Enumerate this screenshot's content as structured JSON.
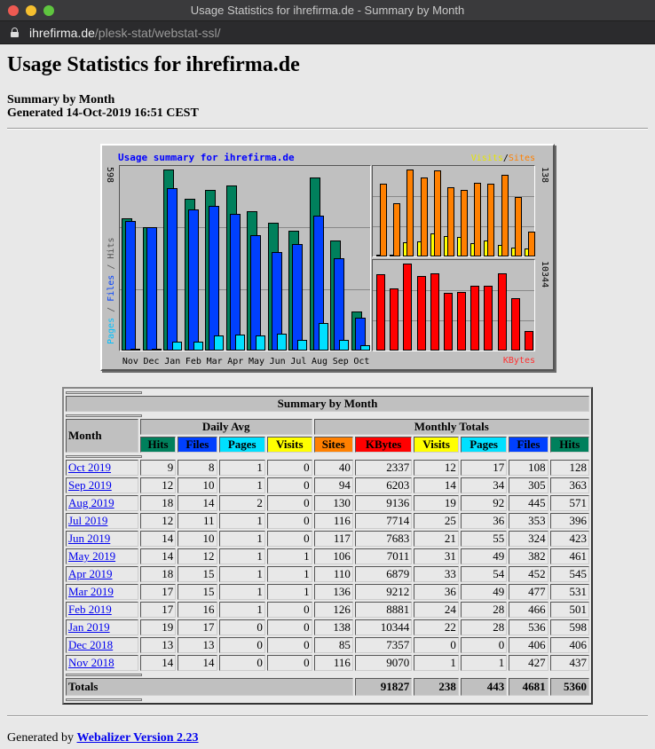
{
  "window": {
    "title": "Usage Statistics for ihrefirma.de - Summary by Month",
    "url_host": "ihrefirma.de",
    "url_path": "/plesk-stat/webstat-ssl/"
  },
  "page": {
    "heading": "Usage Statistics for ihrefirma.de",
    "subtitle": "Summary by Month",
    "generated": "Generated 14-Oct-2019 16:51 CEST"
  },
  "chart": {
    "title": "Usage summary for ihrefirma.de",
    "left_max": "598",
    "right_top_max": "138",
    "right_bottom_max": "10344",
    "legend_left": {
      "pages": "Pages",
      "files": "Files",
      "hits": "Hits",
      "sep": "/"
    },
    "legend_visits": "Visits",
    "legend_sites": "Sites",
    "legend_sep": "/",
    "legend_kbytes": "KBytes",
    "colors": {
      "hits": "#00805c",
      "files": "#0040ff",
      "pages": "#00e0ff",
      "visits": "#ffff00",
      "sites": "#ff8000",
      "kbytes": "#ff0000"
    }
  },
  "chart_data": {
    "type": "bar",
    "title": "Usage summary for ihrefirma.de",
    "categories": [
      "Nov",
      "Dec",
      "Jan",
      "Feb",
      "Mar",
      "Apr",
      "May",
      "Jun",
      "Jul",
      "Aug",
      "Sep",
      "Oct"
    ],
    "panels": [
      {
        "name": "Pages / Files / Hits",
        "ylim": [
          0,
          598
        ],
        "series": [
          {
            "name": "Hits",
            "values": [
              437,
              406,
              598,
              501,
              531,
              545,
              461,
              423,
              396,
              571,
              363,
              128
            ]
          },
          {
            "name": "Files",
            "values": [
              427,
              406,
              536,
              466,
              477,
              452,
              382,
              324,
              353,
              445,
              305,
              108
            ]
          },
          {
            "name": "Pages",
            "values": [
              1,
              0,
              28,
              28,
              49,
              54,
              49,
              55,
              36,
              92,
              34,
              17
            ]
          }
        ]
      },
      {
        "name": "Visits / Sites",
        "ylim": [
          0,
          138
        ],
        "series": [
          {
            "name": "Visits",
            "values": [
              1,
              0,
              22,
              24,
              36,
              33,
              31,
              21,
              25,
              19,
              14,
              12
            ]
          },
          {
            "name": "Sites",
            "values": [
              116,
              85,
              138,
              126,
              136,
              110,
              106,
              117,
              116,
              130,
              94,
              40
            ]
          }
        ]
      },
      {
        "name": "KBytes",
        "ylim": [
          0,
          10344
        ],
        "series": [
          {
            "name": "KBytes",
            "values": [
              9070,
              7357,
              10344,
              8881,
              9212,
              6879,
              7011,
              7683,
              7714,
              9136,
              6203,
              2337
            ]
          }
        ]
      }
    ],
    "legend_position": "corners",
    "grid": true
  },
  "table": {
    "caption": "Summary by Month",
    "month_header": "Month",
    "daily_avg_header": "Daily Avg",
    "monthly_totals_header": "Monthly Totals",
    "daily_cols": [
      {
        "label": "Hits",
        "color": "#00805c"
      },
      {
        "label": "Files",
        "color": "#0040ff"
      },
      {
        "label": "Pages",
        "color": "#00e0ff"
      },
      {
        "label": "Visits",
        "color": "#ffff00"
      }
    ],
    "total_cols": [
      {
        "label": "Sites",
        "color": "#ff8000"
      },
      {
        "label": "KBytes",
        "color": "#ff0000"
      },
      {
        "label": "Visits",
        "color": "#ffff00"
      },
      {
        "label": "Pages",
        "color": "#00e0ff"
      },
      {
        "label": "Files",
        "color": "#0040ff"
      },
      {
        "label": "Hits",
        "color": "#00805c"
      }
    ],
    "rows": [
      {
        "month": "Oct 2019",
        "d": [
          "9",
          "8",
          "1",
          "0"
        ],
        "t": [
          "40",
          "2337",
          "12",
          "17",
          "108",
          "128"
        ]
      },
      {
        "month": "Sep 2019",
        "d": [
          "12",
          "10",
          "1",
          "0"
        ],
        "t": [
          "94",
          "6203",
          "14",
          "34",
          "305",
          "363"
        ]
      },
      {
        "month": "Aug 2019",
        "d": [
          "18",
          "14",
          "2",
          "0"
        ],
        "t": [
          "130",
          "9136",
          "19",
          "92",
          "445",
          "571"
        ]
      },
      {
        "month": "Jul 2019",
        "d": [
          "12",
          "11",
          "1",
          "0"
        ],
        "t": [
          "116",
          "7714",
          "25",
          "36",
          "353",
          "396"
        ]
      },
      {
        "month": "Jun 2019",
        "d": [
          "14",
          "10",
          "1",
          "0"
        ],
        "t": [
          "117",
          "7683",
          "21",
          "55",
          "324",
          "423"
        ]
      },
      {
        "month": "May 2019",
        "d": [
          "14",
          "12",
          "1",
          "1"
        ],
        "t": [
          "106",
          "7011",
          "31",
          "49",
          "382",
          "461"
        ]
      },
      {
        "month": "Apr 2019",
        "d": [
          "18",
          "15",
          "1",
          "1"
        ],
        "t": [
          "110",
          "6879",
          "33",
          "54",
          "452",
          "545"
        ]
      },
      {
        "month": "Mar 2019",
        "d": [
          "17",
          "15",
          "1",
          "1"
        ],
        "t": [
          "136",
          "9212",
          "36",
          "49",
          "477",
          "531"
        ]
      },
      {
        "month": "Feb 2019",
        "d": [
          "17",
          "16",
          "1",
          "0"
        ],
        "t": [
          "126",
          "8881",
          "24",
          "28",
          "466",
          "501"
        ]
      },
      {
        "month": "Jan 2019",
        "d": [
          "19",
          "17",
          "0",
          "0"
        ],
        "t": [
          "138",
          "10344",
          "22",
          "28",
          "536",
          "598"
        ]
      },
      {
        "month": "Dec 2018",
        "d": [
          "13",
          "13",
          "0",
          "0"
        ],
        "t": [
          "85",
          "7357",
          "0",
          "0",
          "406",
          "406"
        ]
      },
      {
        "month": "Nov 2018",
        "d": [
          "14",
          "14",
          "0",
          "0"
        ],
        "t": [
          "116",
          "9070",
          "1",
          "1",
          "427",
          "437"
        ]
      }
    ],
    "totals_label": "Totals",
    "totals": [
      "91827",
      "238",
      "443",
      "4681",
      "5360"
    ]
  },
  "footer": {
    "prefix": "Generated by ",
    "link": "Webalizer Version 2.23"
  }
}
